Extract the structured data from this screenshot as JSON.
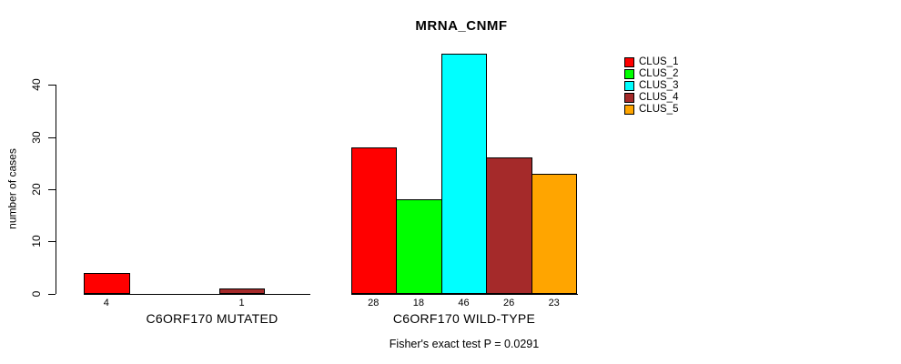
{
  "chart_data": {
    "type": "bar",
    "title": "MRNA_CNMF",
    "ylabel": "number of cases",
    "xlabel": "",
    "ylim": [
      0,
      46
    ],
    "yticks": [
      0,
      10,
      20,
      30,
      40
    ],
    "grid": false,
    "legend_position": "right",
    "bar_border_color": "#000000",
    "background_color": "#ffffff",
    "clusters": [
      {
        "name": "CLUS_1",
        "color": "#FF0000"
      },
      {
        "name": "CLUS_2",
        "color": "#00FF00"
      },
      {
        "name": "CLUS_3",
        "color": "#00FFFF"
      },
      {
        "name": "CLUS_4",
        "color": "#A52A2A"
      },
      {
        "name": "CLUS_5",
        "color": "#FFA500"
      }
    ],
    "groups": [
      {
        "label": "C6ORF170 MUTATED",
        "values": [
          4,
          0,
          0,
          1,
          0
        ],
        "shown_bar_labels": [
          "4",
          "1"
        ]
      },
      {
        "label": "C6ORF170 WILD-TYPE",
        "values": [
          28,
          18,
          46,
          26,
          23
        ],
        "shown_bar_labels": [
          "28",
          "18",
          "46",
          "26",
          "23"
        ]
      }
    ],
    "footnote": "Fisher's exact test P = 0.0291"
  }
}
